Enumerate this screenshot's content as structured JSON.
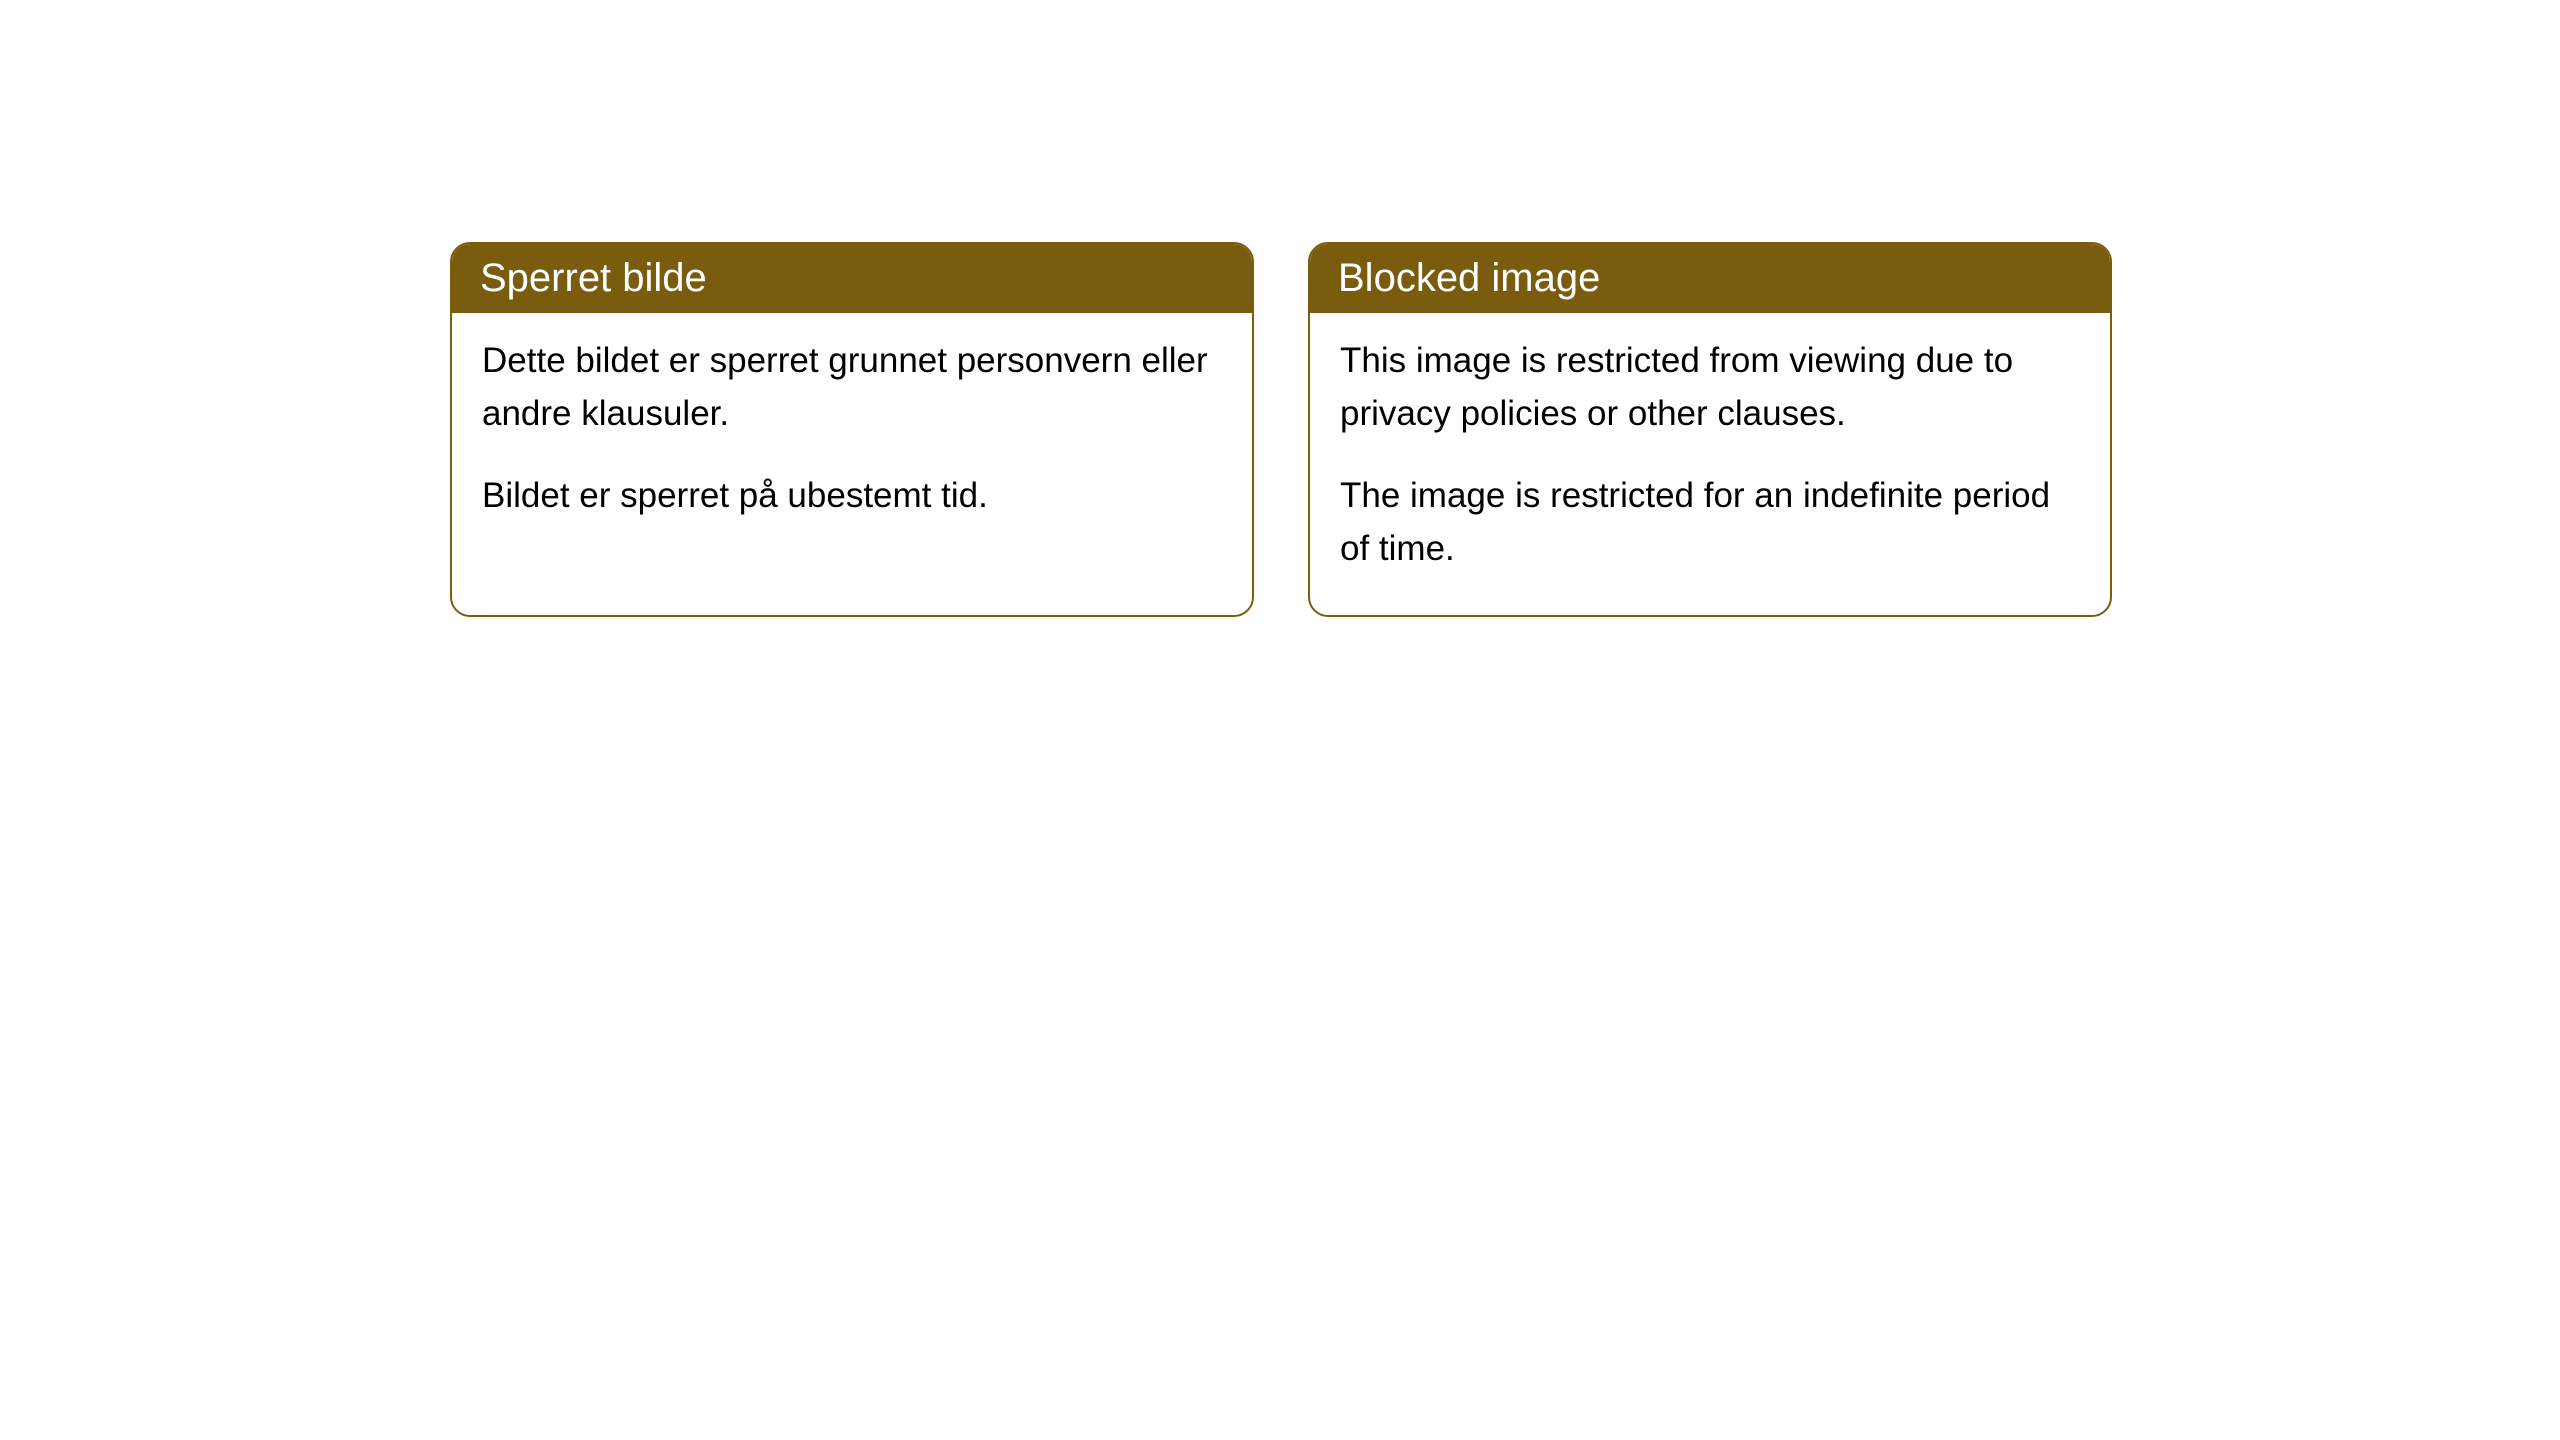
{
  "cards": [
    {
      "title": "Sperret bilde",
      "paragraph1": "Dette bildet er sperret grunnet personvern eller andre klausuler.",
      "paragraph2": "Bildet er sperret på ubestemt tid."
    },
    {
      "title": "Blocked image",
      "paragraph1": "This image is restricted from viewing due to privacy policies or other clauses.",
      "paragraph2": "The image is restricted for an indefinite period of time."
    }
  ],
  "styling": {
    "header_background": "#7a5c0f",
    "header_text_color": "#ffffff",
    "border_color": "#7a5c0f",
    "card_background": "#ffffff",
    "body_text_color": "#000000",
    "border_radius": "20px",
    "header_font_size": 40,
    "body_font_size": 35
  }
}
